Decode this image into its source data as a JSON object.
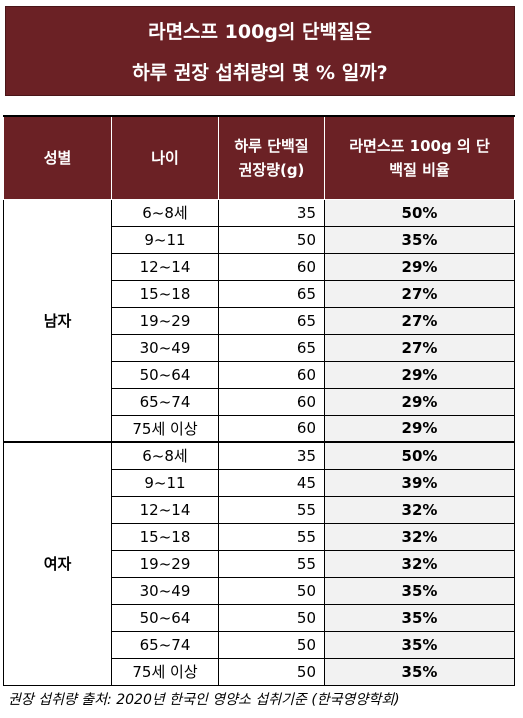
{
  "title": {
    "line1": "라면스프 100g의 단백질은",
    "line2": "하루 권장 섭취량의 몇 % 일까?"
  },
  "table": {
    "headers": {
      "gender": "성별",
      "age": "나이",
      "grams_line1": "하루 단백질",
      "grams_line2": "권장량(g)",
      "ratio_line1": "라면스프 100g 의 단",
      "ratio_line2": "백질 비율"
    },
    "groups": [
      {
        "gender": "남자",
        "rows": [
          {
            "age": "6~8세",
            "grams": "35",
            "ratio": "50%"
          },
          {
            "age": "9~11",
            "grams": "50",
            "ratio": "35%"
          },
          {
            "age": "12~14",
            "grams": "60",
            "ratio": "29%"
          },
          {
            "age": "15~18",
            "grams": "65",
            "ratio": "27%"
          },
          {
            "age": "19~29",
            "grams": "65",
            "ratio": "27%"
          },
          {
            "age": "30~49",
            "grams": "65",
            "ratio": "27%"
          },
          {
            "age": "50~64",
            "grams": "60",
            "ratio": "29%"
          },
          {
            "age": "65~74",
            "grams": "60",
            "ratio": "29%"
          },
          {
            "age": "75세 이상",
            "grams": "60",
            "ratio": "29%"
          }
        ]
      },
      {
        "gender": "여자",
        "rows": [
          {
            "age": "6~8세",
            "grams": "35",
            "ratio": "50%"
          },
          {
            "age": "9~11",
            "grams": "45",
            "ratio": "39%"
          },
          {
            "age": "12~14",
            "grams": "55",
            "ratio": "32%"
          },
          {
            "age": "15~18",
            "grams": "55",
            "ratio": "32%"
          },
          {
            "age": "19~29",
            "grams": "55",
            "ratio": "32%"
          },
          {
            "age": "30~49",
            "grams": "50",
            "ratio": "35%"
          },
          {
            "age": "50~64",
            "grams": "50",
            "ratio": "35%"
          },
          {
            "age": "65~74",
            "grams": "50",
            "ratio": "35%"
          },
          {
            "age": "75세 이상",
            "grams": "50",
            "ratio": "35%"
          }
        ]
      }
    ]
  },
  "source": "권장 섭취량 출처: 2020년 한국인 영양소 섭취기준 (한국영양학회)"
}
